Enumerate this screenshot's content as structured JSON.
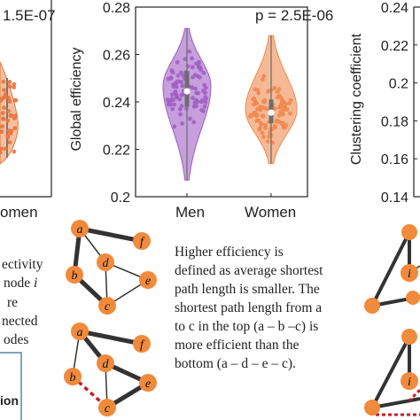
{
  "chart_data": [
    {
      "type": "violin",
      "ylabel": "",
      "pvalue": "1.5E-07",
      "categories": [
        "Men",
        "Women"
      ],
      "visible_category_label": "omen",
      "series": [
        {
          "name": "Women",
          "median_approx": 0.445,
          "range": [
            0.4,
            0.49
          ]
        }
      ]
    },
    {
      "type": "violin",
      "ylabel": "Global efficiency",
      "pvalue": "p = 2.5E-06",
      "categories": [
        "Men",
        "Women"
      ],
      "ylim": [
        0.2,
        0.28
      ],
      "yticks": [
        "0.2",
        "0.22",
        "0.24",
        "0.26",
        "0.28"
      ],
      "series": [
        {
          "name": "Men",
          "color": "#a05fc4",
          "median": 0.2445,
          "q1": 0.238,
          "q3": 0.253,
          "min": 0.207,
          "max": 0.271
        },
        {
          "name": "Women",
          "color": "#f08a50",
          "median": 0.2355,
          "q1": 0.231,
          "q3": 0.241,
          "min": 0.214,
          "max": 0.268
        }
      ]
    },
    {
      "type": "violin",
      "ylabel": "Clustering coefficient",
      "ylim": [
        0.14,
        0.24
      ],
      "yticks": [
        "0.14",
        "0.16",
        "0.18",
        "0.2",
        "0.22",
        "0.24"
      ]
    }
  ],
  "colors": {
    "men": "#a05fc4",
    "women": "#f08a50",
    "node": "#f08a3c",
    "box": "#5c84a8"
  },
  "graph": {
    "top_nodes": [
      "a",
      "f",
      "b",
      "d",
      "e",
      "c"
    ],
    "bottom_nodes": [
      "a",
      "f",
      "b",
      "d",
      "e",
      "c"
    ]
  },
  "description": [
    "Higher efficiency is",
    "defined as average shortest",
    "path length is smaller. The",
    "shortest path length from a",
    "to c in the top (a – b –c) is",
    "more efficient than the",
    "bottom (a – d – e – c)."
  ],
  "left_text": [
    "ectivity",
    "node i",
    "re",
    "nected",
    "odes"
  ],
  "left_box_label": "ion",
  "right_graph": {
    "node_labels": [
      "i",
      "i"
    ]
  }
}
